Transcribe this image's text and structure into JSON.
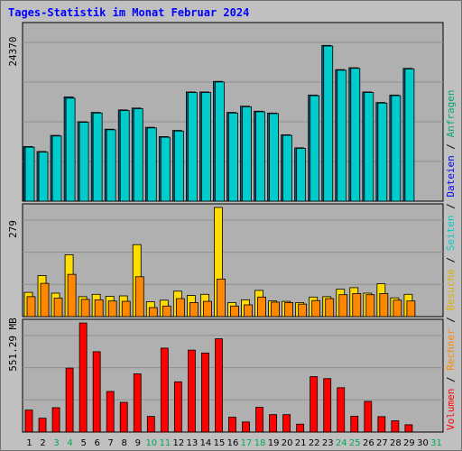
{
  "title": "Tages-Statistik im Monat Februar 2024",
  "colors": {
    "background": "#c0c0c0",
    "plot": "#b0b0b0",
    "anfragen": "#00aa66",
    "dateien": "#0000ff",
    "seiten": "#00cccc",
    "besuche": "#ffdd00",
    "rechner": "#ff8800",
    "volumen": "#ff0000",
    "weekend_tick": "#00aa55",
    "weekday_tick": "#000000"
  },
  "chart_data": [
    {
      "type": "bar",
      "panel": "top",
      "max_label": "24370",
      "ylim": [
        0,
        28200
      ],
      "x": [
        1,
        2,
        3,
        4,
        5,
        6,
        7,
        8,
        9,
        10,
        11,
        12,
        13,
        14,
        15,
        16,
        17,
        18,
        19,
        20,
        21,
        22,
        23,
        24,
        25,
        26,
        27,
        28,
        29,
        30,
        31
      ],
      "series": [
        {
          "name": "Anfragen",
          "values": [
            8800,
            8000,
            10600,
            16800,
            12800,
            14300,
            11600,
            14700,
            15000,
            11900,
            10400,
            11400,
            17600,
            17600,
            19300,
            14300,
            15300,
            14500,
            14200,
            10700,
            8600,
            17100,
            25100,
            21200,
            21500,
            17600,
            15900,
            17100,
            21400,
            null,
            null
          ]
        },
        {
          "name": "Dateien",
          "values": [
            8700,
            7900,
            10500,
            16600,
            12700,
            14200,
            11500,
            14600,
            14900,
            11800,
            10300,
            11300,
            17500,
            17500,
            19200,
            14200,
            15200,
            14400,
            14100,
            10600,
            8500,
            17000,
            25000,
            21100,
            21400,
            17500,
            15800,
            17000,
            21300,
            null,
            null
          ]
        }
      ]
    },
    {
      "type": "bar",
      "panel": "middle",
      "max_label": "279",
      "ylim": [
        0,
        279
      ],
      "x": [
        1,
        2,
        3,
        4,
        5,
        6,
        7,
        8,
        9,
        10,
        11,
        12,
        13,
        14,
        15,
        16,
        17,
        18,
        19,
        20,
        21,
        22,
        23,
        24,
        25,
        26,
        27,
        28,
        29,
        30,
        31
      ],
      "series": [
        {
          "name": "Seiten",
          "values": [
            62,
            105,
            60,
            158,
            51,
            57,
            52,
            53,
            184,
            38,
            42,
            65,
            54,
            57,
            279,
            36,
            43,
            67,
            40,
            39,
            36,
            50,
            51,
            70,
            74,
            60,
            84,
            48,
            57,
            null,
            null
          ]
        },
        {
          "name": "Besuche",
          "values": [
            51,
            85,
            47,
            108,
            44,
            43,
            40,
            39,
            102,
            23,
            27,
            46,
            36,
            39,
            96,
            27,
            30,
            50,
            37,
            36,
            32,
            41,
            46,
            56,
            59,
            56,
            59,
            42,
            40,
            null,
            null
          ]
        }
      ]
    },
    {
      "type": "bar",
      "panel": "bottom",
      "max_label": "551.29 MB",
      "ylim": [
        0,
        551.29
      ],
      "unit": "MB",
      "x": [
        1,
        2,
        3,
        4,
        5,
        6,
        7,
        8,
        9,
        10,
        11,
        12,
        13,
        14,
        15,
        16,
        17,
        18,
        19,
        20,
        21,
        22,
        23,
        24,
        25,
        26,
        27,
        28,
        29,
        30,
        31
      ],
      "series": [
        {
          "name": "Volumen",
          "values": [
            111,
            70,
            123,
            323,
            551,
            406,
            205,
            150,
            294,
            79,
            424,
            254,
            414,
            399,
            471,
            75,
            51,
            125,
            88,
            88,
            40,
            280,
            270,
            224,
            80,
            155,
            78,
            57,
            37,
            null,
            null
          ]
        }
      ]
    }
  ],
  "legend": {
    "volumen": "Volumen",
    "rechner": "Rechner",
    "besuche": "Besuche",
    "seiten": "Seiten",
    "dateien": "Dateien",
    "anfragen": "Anfragen",
    "sep": " / "
  },
  "x_ticks": [
    "1",
    "2",
    "3",
    "4",
    "5",
    "6",
    "7",
    "8",
    "9",
    "10",
    "11",
    "12",
    "13",
    "14",
    "15",
    "16",
    "17",
    "18",
    "19",
    "20",
    "21",
    "22",
    "23",
    "24",
    "25",
    "26",
    "27",
    "28",
    "29",
    "30",
    "31"
  ],
  "weekend_days": [
    3,
    4,
    10,
    11,
    17,
    18,
    24,
    25,
    31
  ]
}
